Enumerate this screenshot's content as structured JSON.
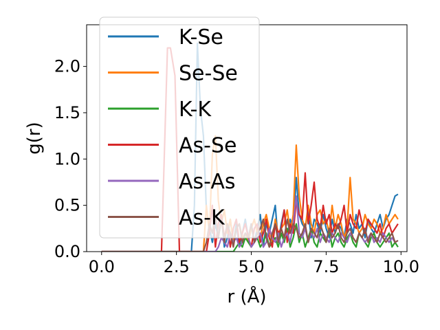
{
  "chart_data": {
    "type": "line",
    "title": "",
    "xlabel": "r (Å)",
    "ylabel": "g(r)",
    "xlim": [
      -0.5,
      10.2
    ],
    "ylim": [
      0.0,
      2.45
    ],
    "xticks": [
      0.0,
      2.5,
      5.0,
      7.5,
      10.0
    ],
    "xtick_labels": [
      "0.0",
      "2.5",
      "5.0",
      "7.5",
      "10.0"
    ],
    "yticks": [
      0.0,
      0.5,
      1.0,
      1.5,
      2.0
    ],
    "ytick_labels": [
      "0.0",
      "0.5",
      "1.0",
      "1.5",
      "2.0"
    ],
    "grid": false,
    "legend_position": "upper-left",
    "x": [
      0.0,
      0.5,
      1.0,
      1.5,
      2.0,
      2.2,
      2.3,
      2.45,
      2.6,
      2.8,
      3.0,
      3.1,
      3.2,
      3.3,
      3.4,
      3.5,
      3.6,
      3.7,
      3.8,
      3.9,
      4.0,
      4.1,
      4.2,
      4.3,
      4.4,
      4.5,
      4.6,
      4.7,
      4.8,
      4.9,
      5.0,
      5.1,
      5.2,
      5.3,
      5.4,
      5.5,
      5.6,
      5.7,
      5.8,
      5.9,
      6.0,
      6.1,
      6.2,
      6.3,
      6.4,
      6.5,
      6.6,
      6.7,
      6.8,
      6.9,
      7.0,
      7.1,
      7.2,
      7.3,
      7.4,
      7.5,
      7.6,
      7.7,
      7.8,
      7.9,
      8.0,
      8.1,
      8.2,
      8.3,
      8.4,
      8.5,
      8.6,
      8.7,
      8.8,
      8.9,
      9.0,
      9.1,
      9.2,
      9.3,
      9.4,
      9.5,
      9.6,
      9.7,
      9.8,
      9.9
    ],
    "series": [
      {
        "name": "K-Se",
        "color": "#1f77b4",
        "values": [
          0,
          0,
          0,
          0,
          0,
          0,
          0,
          0,
          0,
          0,
          0,
          0.5,
          2.25,
          1.55,
          1.25,
          0.45,
          0.25,
          0.1,
          0.3,
          0.15,
          0.4,
          0.05,
          0.15,
          0.35,
          0.1,
          0.3,
          0.05,
          0.2,
          0.35,
          0.15,
          0.3,
          0.1,
          0.25,
          0.4,
          0.05,
          0.3,
          0.2,
          0.35,
          0.5,
          0.1,
          0.3,
          0.45,
          0.15,
          0.35,
          0.25,
          0.8,
          0.4,
          0.3,
          0.25,
          0.45,
          0.15,
          0.35,
          0.3,
          0.2,
          0.4,
          0.25,
          0.15,
          0.35,
          0.2,
          0.3,
          0.25,
          0.15,
          0.35,
          0.3,
          0.2,
          0.4,
          0.25,
          0.3,
          0.15,
          0.35,
          0.25,
          0.2,
          0.3,
          0.4,
          0.25,
          0.35,
          0.4,
          0.5,
          0.6,
          0.62
        ]
      },
      {
        "name": "Se-Se",
        "color": "#ff7f0e",
        "values": [
          0,
          0,
          0,
          0,
          0,
          0,
          0,
          0,
          0,
          0,
          0,
          0,
          0,
          0,
          0,
          0.5,
          0.2,
          1.05,
          1.25,
          0.55,
          0.3,
          0.45,
          0.2,
          0.35,
          0.1,
          0.25,
          0.3,
          0.15,
          0.2,
          0.1,
          0.25,
          0.35,
          0.2,
          0.15,
          0.3,
          0.4,
          0.25,
          0.1,
          0.35,
          0.2,
          0.25,
          0.3,
          0.45,
          0.2,
          0.4,
          1.15,
          0.6,
          0.35,
          0.25,
          0.5,
          0.3,
          0.2,
          0.4,
          0.45,
          0.3,
          0.35,
          0.2,
          0.5,
          0.25,
          0.4,
          0.3,
          0.15,
          0.25,
          0.8,
          0.35,
          0.3,
          0.2,
          0.25,
          0.4,
          0.3,
          0.25,
          0.35,
          0.3,
          0.2,
          0.25,
          0.4,
          0.3,
          0.35,
          0.4,
          0.35
        ]
      },
      {
        "name": "K-K",
        "color": "#2ca02c",
        "values": [
          0,
          0,
          0,
          0,
          0,
          0,
          0,
          0,
          0,
          0,
          0,
          0,
          0,
          0,
          0,
          0,
          0,
          0,
          0,
          0,
          0,
          0,
          0,
          0,
          0,
          0.05,
          0.1,
          0.05,
          0.15,
          0.1,
          0.05,
          0.1,
          0.15,
          0.05,
          0.1,
          0.2,
          0.05,
          0.1,
          0.15,
          0.05,
          0.2,
          0.1,
          0.25,
          0.05,
          0.15,
          0.3,
          0.1,
          0.2,
          0.05,
          0.15,
          0.25,
          0.1,
          0.05,
          0.2,
          0.15,
          0.1,
          0.25,
          0.05,
          0.15,
          0.2,
          0.1,
          0.05,
          0.15,
          0.2,
          0.1,
          0.05,
          0.2,
          0.15,
          0.1,
          0.05,
          0.15,
          0.2,
          0.1,
          0.05,
          0.1,
          0.15,
          0.2,
          0.05,
          0.1,
          0.05
        ]
      },
      {
        "name": "As-Se",
        "color": "#d62728",
        "values": [
          0,
          0,
          0,
          0,
          0,
          2.2,
          2.2,
          1.9,
          0,
          0,
          0,
          0,
          0,
          0,
          0,
          0,
          0.2,
          0.5,
          0.05,
          0.3,
          0.4,
          0.15,
          0.3,
          0.05,
          0.25,
          0.35,
          0.1,
          0.2,
          0.3,
          0.15,
          0.05,
          0.25,
          0.3,
          0.1,
          0.2,
          0.35,
          0.15,
          0.05,
          0.3,
          0.2,
          0.25,
          0.45,
          0.1,
          0.3,
          0.2,
          0.55,
          0.4,
          0.35,
          0.85,
          0.3,
          0.5,
          0.75,
          0.35,
          0.25,
          0.5,
          0.3,
          0.4,
          0.2,
          0.3,
          0.25,
          0.35,
          0.5,
          0.2,
          0.4,
          0.3,
          0.25,
          0.45,
          0.3,
          0.2,
          0.35,
          0.3,
          0.25,
          0.2,
          0.3,
          0.15,
          0.25,
          0.3,
          0.2,
          0.25,
          0.3
        ]
      },
      {
        "name": "As-As",
        "color": "#9467bd",
        "values": [
          0,
          0,
          0,
          0,
          0,
          0,
          0,
          0,
          0,
          0,
          0,
          0,
          0,
          0,
          0,
          0,
          0,
          0,
          0,
          0.05,
          0.15,
          0.1,
          0.05,
          0.2,
          0.1,
          0.15,
          0.05,
          0.1,
          0.2,
          0.15,
          0.05,
          0.1,
          0.15,
          0.2,
          0.05,
          0.1,
          0.25,
          0.15,
          0.1,
          0.2,
          0.05,
          0.15,
          0.2,
          0.1,
          0.3,
          0.6,
          0.2,
          0.15,
          0.25,
          0.1,
          0.2,
          0.15,
          0.25,
          0.1,
          0.2,
          0.15,
          0.1,
          0.2,
          0.15,
          0.1,
          0.2,
          0.15,
          0.1,
          0.2,
          0.15,
          0.1,
          0.2,
          0.15,
          0.1,
          0.15,
          0.2,
          0.1,
          0.15,
          0.1,
          0.2,
          0.15,
          0.1,
          0.15,
          0.1,
          0.12
        ]
      },
      {
        "name": "As-K",
        "color": "#8c564b",
        "values": [
          0,
          0,
          0,
          0,
          0,
          0,
          0,
          0,
          0,
          0,
          0,
          0,
          0,
          0,
          0,
          0.1,
          0.3,
          0.2,
          0.4,
          0.15,
          0.35,
          0.1,
          0.3,
          0.2,
          0.05,
          0.25,
          0.3,
          0.1,
          0.2,
          0.15,
          0.3,
          0.1,
          0.2,
          0.25,
          0.35,
          0.15,
          0.05,
          0.2,
          0.3,
          0.1,
          0.25,
          0.15,
          0.35,
          0.2,
          0.3,
          0.25,
          0.15,
          0.2,
          0.3,
          0.1,
          0.25,
          0.2,
          0.15,
          0.3,
          0.2,
          0.1,
          0.25,
          0.15,
          0.2,
          0.3,
          0.15,
          0.1,
          0.2,
          0.25,
          0.15,
          0.1,
          0.2,
          0.15,
          0.25,
          0.1,
          0.2,
          0.15,
          0.1,
          0.2,
          0.15,
          0.1,
          0.15,
          0.2,
          0.1,
          0.12
        ]
      }
    ]
  }
}
